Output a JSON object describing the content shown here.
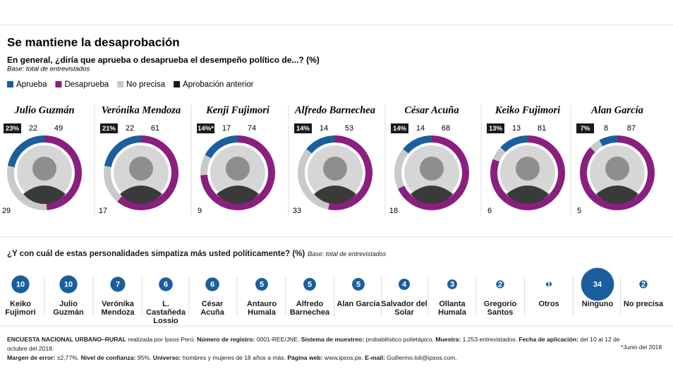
{
  "title": "Se mantiene la desaprobación",
  "subtitle": "En general, ¿diría que aprueba o desaprueba el desempeño político de...? (%)",
  "note": "Base: total de entrevistados",
  "legend": [
    {
      "name": "Aprueba",
      "color": "#1b5e9e"
    },
    {
      "name": "Desaprueba",
      "color": "#8a1f80"
    },
    {
      "name": "No precisa",
      "color": "#c9c9c9"
    },
    {
      "name": "Aprobación anterior",
      "color": "#1a1a1a"
    }
  ],
  "chart_data": [
    {
      "type": "donut",
      "title": "Julio Guzmán",
      "categories": [
        "Aprueba",
        "Desaprueba",
        "No precisa"
      ],
      "values": [
        22,
        49,
        29
      ],
      "colors": [
        "#1b5e9e",
        "#8a1f80",
        "#c9c9c9"
      ],
      "previous": 23,
      "previous_label": "23%"
    },
    {
      "type": "donut",
      "title": "Verónika Mendoza",
      "categories": [
        "Aprueba",
        "Desaprueba",
        "No precisa"
      ],
      "values": [
        22,
        61,
        17
      ],
      "colors": [
        "#1b5e9e",
        "#8a1f80",
        "#c9c9c9"
      ],
      "previous": 21,
      "previous_label": "21%"
    },
    {
      "type": "donut",
      "title": "Kenji Fujimori",
      "categories": [
        "Aprueba",
        "Desaprueba",
        "No precisa"
      ],
      "values": [
        17,
        74,
        9
      ],
      "colors": [
        "#1b5e9e",
        "#8a1f80",
        "#c9c9c9"
      ],
      "previous": 14,
      "previous_label": "14%*"
    },
    {
      "type": "donut",
      "title": "Alfredo Barnechea",
      "categories": [
        "Aprueba",
        "Desaprueba",
        "No precisa"
      ],
      "values": [
        14,
        53,
        33
      ],
      "colors": [
        "#1b5e9e",
        "#8a1f80",
        "#c9c9c9"
      ],
      "previous": 14,
      "previous_label": "14%"
    },
    {
      "type": "donut",
      "title": "César Acuña",
      "categories": [
        "Aprueba",
        "Desaprueba",
        "No precisa"
      ],
      "values": [
        14,
        68,
        18
      ],
      "colors": [
        "#1b5e9e",
        "#8a1f80",
        "#c9c9c9"
      ],
      "previous": 14,
      "previous_label": "14%"
    },
    {
      "type": "donut",
      "title": "Keiko Fujimori",
      "categories": [
        "Aprueba",
        "Desaprueba",
        "No precisa"
      ],
      "values": [
        13,
        81,
        6
      ],
      "colors": [
        "#1b5e9e",
        "#8a1f80",
        "#c9c9c9"
      ],
      "previous": 13,
      "previous_label": "13%"
    },
    {
      "type": "donut",
      "title": "Alan García",
      "categories": [
        "Aprueba",
        "Desaprueba",
        "No precisa"
      ],
      "values": [
        8,
        87,
        5
      ],
      "colors": [
        "#1b5e9e",
        "#8a1f80",
        "#c9c9c9"
      ],
      "previous": 7,
      "previous_label": "7%"
    },
    {
      "type": "bubble",
      "title": "¿Y con cuál de estas personalidades simpatiza más usted políticamente? (%)",
      "subtitle": "Base: total de entrevistados",
      "color": "#1b5e9e",
      "categories": [
        "Keiko Fujimori",
        "Julio Guzmán",
        "Verónika Mendoza",
        "L. Castañeda Lossio",
        "César Acuña",
        "Antauro Humala",
        "Alfredo Barnechea",
        "Alan García",
        "Salvador del Solar",
        "Ollanta Humala",
        "Gregorio Santos",
        "Otros",
        "Ninguno",
        "No precisa"
      ],
      "values": [
        10,
        10,
        7,
        6,
        6,
        5,
        5,
        5,
        4,
        3,
        2,
        1,
        34,
        2
      ]
    }
  ],
  "footer": [
    [
      {
        "label": "ENCUESTA NACIONAL URBANO–RURAL",
        "text": "realizada por Ipsos Perú."
      },
      {
        "label": "Número de registro:",
        "text": "0001-REE/JNE."
      },
      {
        "label": "Sistema de muestreo:",
        "text": "probabilístico polietápico."
      },
      {
        "label": "Muestra:",
        "text": "1.253 entrevistados."
      },
      {
        "label": "Fecha de aplicación:",
        "text": "del 10 al 12 de octubre del 2018."
      }
    ],
    [
      {
        "label": "Margen de error:",
        "text": "±2,77%."
      },
      {
        "label": "Nivel de confianza:",
        "text": "95%."
      },
      {
        "label": "Universo:",
        "text": "hombres y mujeres de 18 años a más."
      },
      {
        "label": "Página web:",
        "text": "www.ipsos.pe."
      },
      {
        "label": "E-mail:",
        "text": "Guillermo.loli@ipsos.com."
      }
    ]
  ],
  "footnote": "*Junio del 2018"
}
